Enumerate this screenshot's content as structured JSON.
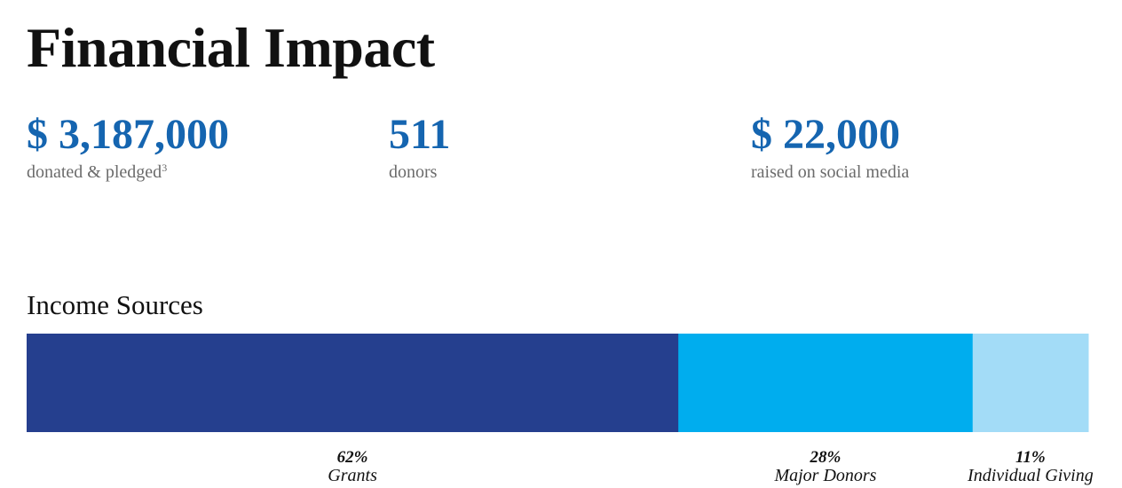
{
  "title": "Financial Impact",
  "stats": [
    {
      "value": "$ 3,187,000",
      "label": "donated & pledged",
      "footnote": "3"
    },
    {
      "value": "511",
      "label": "donors"
    },
    {
      "value": "$ 22,000",
      "label": "raised on social media"
    }
  ],
  "colors": {
    "title_text": "#111111",
    "stat_value": "#1565b0",
    "stat_label": "#6b6b6b"
  },
  "chart_data": {
    "type": "bar",
    "title": "Income Sources",
    "stacked": true,
    "orientation": "horizontal",
    "categories": [
      "Grants",
      "Major Donors",
      "Individual Giving"
    ],
    "values": [
      62,
      28,
      11
    ],
    "value_labels": [
      "62%",
      "28%",
      "11%"
    ],
    "colors": [
      "#253f8e",
      "#00adee",
      "#a3dcf7"
    ],
    "xlabel": "",
    "ylabel": "",
    "grid": false,
    "legend": "none"
  }
}
